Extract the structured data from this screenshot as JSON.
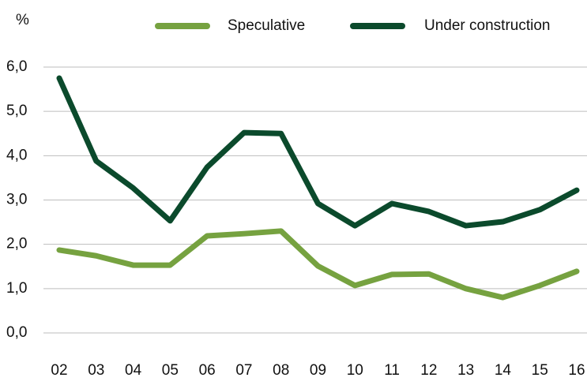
{
  "chart_data": {
    "type": "line",
    "y_axis_label": "%",
    "categories": [
      "02",
      "03",
      "04",
      "05",
      "06",
      "07",
      "08",
      "09",
      "10",
      "11",
      "12",
      "13",
      "14",
      "15",
      "16"
    ],
    "series": [
      {
        "name": "Speculative",
        "color": "#76a240",
        "values": [
          1.87,
          1.74,
          1.53,
          1.53,
          2.19,
          2.24,
          2.3,
          1.51,
          1.07,
          1.32,
          1.33,
          1.0,
          0.8,
          1.07,
          1.39
        ]
      },
      {
        "name": "Under construction",
        "color": "#0b4a2c",
        "values": [
          5.75,
          3.88,
          3.27,
          2.53,
          3.74,
          4.52,
          4.5,
          2.92,
          2.42,
          2.92,
          2.74,
          2.42,
          2.51,
          2.78,
          3.22
        ]
      }
    ],
    "ylim": [
      0,
      6
    ],
    "yticks": [
      {
        "value": 0,
        "label": "0,0"
      },
      {
        "value": 1,
        "label": "1,0"
      },
      {
        "value": 2,
        "label": "2,0"
      },
      {
        "value": 3,
        "label": "3,0"
      },
      {
        "value": 4,
        "label": "4,0"
      },
      {
        "value": 5,
        "label": "5,0"
      },
      {
        "value": 6,
        "label": "6,0"
      }
    ],
    "grid": true
  }
}
